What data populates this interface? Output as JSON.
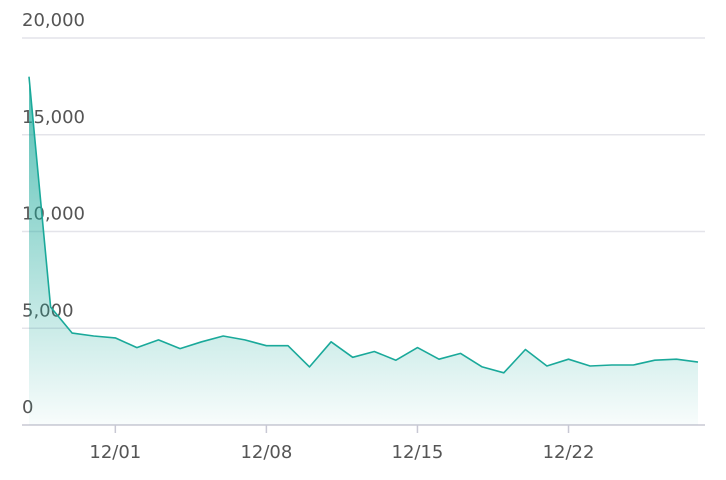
{
  "chart_data": {
    "type": "area",
    "categories": [
      null,
      null,
      null,
      null,
      "12/01",
      null,
      null,
      null,
      null,
      null,
      null,
      "12/08",
      null,
      null,
      null,
      null,
      null,
      null,
      "12/15",
      null,
      null,
      null,
      null,
      null,
      null,
      "12/22",
      null,
      null,
      null,
      null,
      null,
      null
    ],
    "values": [
      18000,
      6100,
      4750,
      4600,
      4500,
      4000,
      4400,
      3950,
      4300,
      4600,
      4400,
      4100,
      4100,
      3000,
      4300,
      3500,
      3800,
      3350,
      4000,
      3400,
      3700,
      3000,
      2700,
      3900,
      3050,
      3400,
      3050,
      3100,
      3100,
      3350,
      3400,
      3250
    ],
    "color": "#1aa99a",
    "ylim": [
      0,
      20000
    ],
    "yticks": [
      0,
      {
        "value": 5000,
        "label": "5,000"
      },
      {
        "value": 10000,
        "label": "10,000"
      },
      {
        "value": 15000,
        "label": "15,000"
      },
      {
        "value": 20000,
        "label": "20,000"
      }
    ],
    "grid": true
  }
}
